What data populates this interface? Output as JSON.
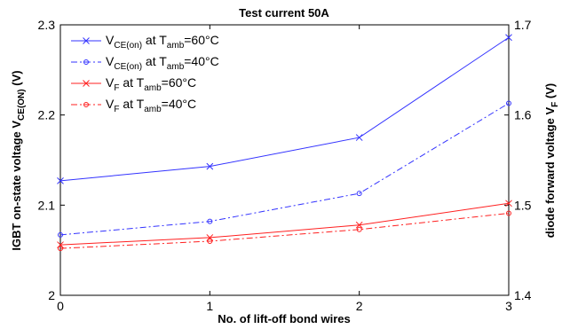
{
  "chart_data": {
    "type": "line",
    "title": "Test current 50A",
    "xlabel": "No. of lift-off bond wires",
    "ylabel_left": {
      "main": "IGBT on-state voltage V",
      "sub": "CE(ON)",
      "unit": " (V)"
    },
    "ylabel_right": {
      "main": "diode forward voltage V",
      "sub": "F",
      "unit": " (V)"
    },
    "x": [
      0,
      1,
      2,
      3
    ],
    "x_ticks": [
      "0",
      "1",
      "2",
      "3"
    ],
    "xlim": [
      0,
      3
    ],
    "ylim_left": [
      2.0,
      2.3
    ],
    "ylim_right": [
      1.4,
      1.7
    ],
    "y_ticks_left": [
      "2",
      "2.1",
      "2.2",
      "2.3"
    ],
    "y_ticks_right": [
      "1.4",
      "1.5",
      "1.6",
      "1.7"
    ],
    "grid": false,
    "legend_position": "top-left",
    "series": [
      {
        "name": "VCE(on) at Tamb=60°C",
        "legend": {
          "a": "V",
          "a_sub": "CE(on)",
          "b": " at T",
          "b_sub": "amb",
          "c": "=60°C"
        },
        "axis": "left",
        "color": "#3333ff",
        "line": "solid",
        "marker": "x",
        "values": [
          2.127,
          2.143,
          2.175,
          2.286
        ]
      },
      {
        "name": "VCE(on) at Tamb=40°C",
        "legend": {
          "a": "V",
          "a_sub": "CE(on)",
          "b": " at T",
          "b_sub": "amb",
          "c": "=40°C"
        },
        "axis": "left",
        "color": "#3333ff",
        "line": "dashdot",
        "marker": "o",
        "values": [
          2.067,
          2.082,
          2.113,
          2.213
        ]
      },
      {
        "name": "VF at Tamb=60°C",
        "legend": {
          "a": "V",
          "a_sub": "F",
          "b": " at T",
          "b_sub": "amb",
          "c": "=60°C"
        },
        "axis": "right",
        "color": "#ff2020",
        "line": "solid",
        "marker": "x",
        "values": [
          1.456,
          1.464,
          1.478,
          1.502
        ]
      },
      {
        "name": "VF at Tamb=40°C",
        "legend": {
          "a": "V",
          "a_sub": "F",
          "b": " at T",
          "b_sub": "amb",
          "c": "=40°C"
        },
        "axis": "right",
        "color": "#ff2020",
        "line": "dashdot",
        "marker": "o",
        "values": [
          1.452,
          1.46,
          1.473,
          1.491
        ]
      }
    ]
  }
}
